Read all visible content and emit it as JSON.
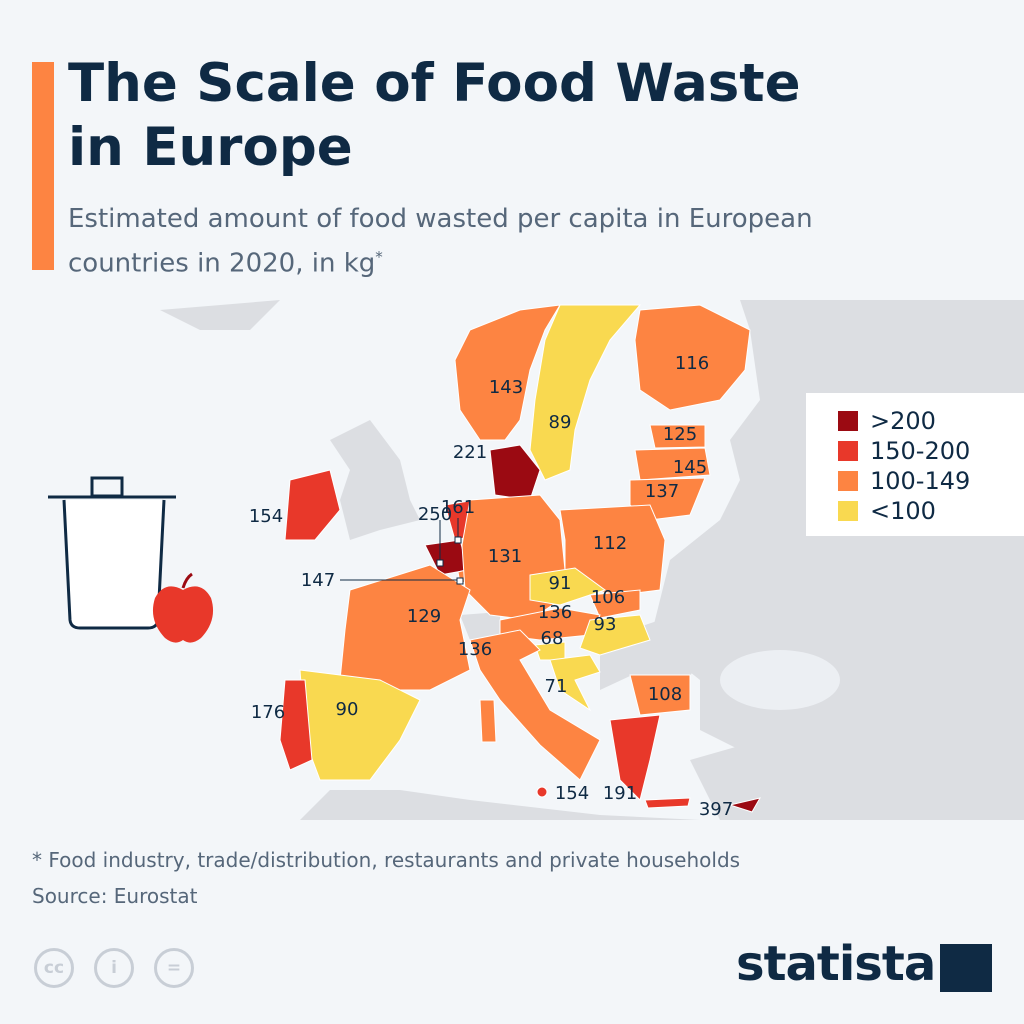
{
  "title": "The Scale of Food Waste in Europe",
  "subtitle": "Estimated amount of food wasted per capita in European countries in 2020, in kg",
  "subtitle_mark": "*",
  "legend": [
    {
      "label": ">200",
      "color": "#9b0a12"
    },
    {
      "label": "150-200",
      "color": "#e8382a"
    },
    {
      "label": "100-149",
      "color": "#fd8442"
    },
    {
      "label": "<100",
      "color": "#f9d950"
    }
  ],
  "values": {
    "no": "143",
    "se": "89",
    "fi": "116",
    "ee": "125",
    "lv": "145",
    "lt": "137",
    "dk": "221",
    "ie": "154",
    "nl": "161",
    "be": "250",
    "lu": "147",
    "de": "131",
    "pl": "112",
    "cz": "91",
    "sk": "106",
    "at": "136",
    "hu": "93",
    "si": "68",
    "hr": "71",
    "fr": "129",
    "it": "136",
    "es": "90",
    "pt": "176",
    "mt": "154",
    "gr": "191",
    "cy": "397",
    "bg": "108"
  },
  "footnote": "* Food industry, trade/distribution, restaurants and private households",
  "source": "Source: Eurostat",
  "license_icons": [
    "cc",
    "i",
    "="
  ],
  "brand": "statista"
}
